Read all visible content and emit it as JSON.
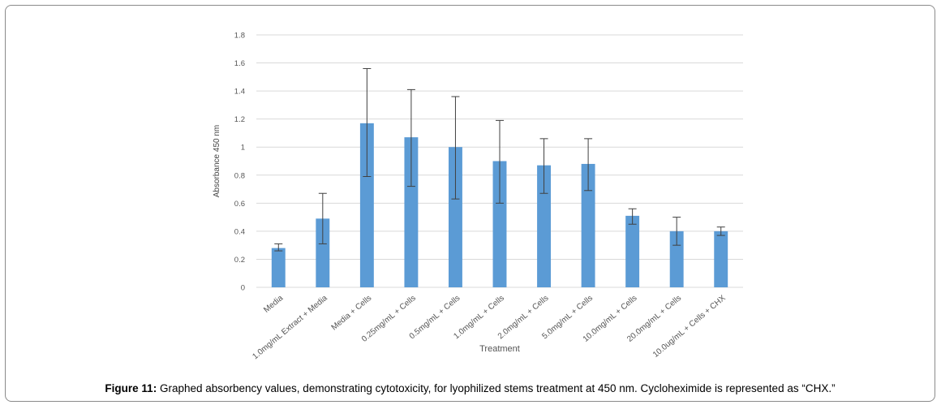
{
  "chart_data": {
    "type": "bar",
    "title": "",
    "xlabel": "Treatment",
    "ylabel": "Absorbance 450 nm",
    "ylim": [
      0,
      1.8
    ],
    "yticks": [
      "0",
      "0.2",
      "0.4",
      "0.6",
      "0.8",
      "1",
      "1.2",
      "1.4",
      "1.6",
      "1.8"
    ],
    "grid": true,
    "legend": "none",
    "bar_color": "#5B9BD5",
    "error_bar_color": "#404040",
    "categories": [
      "Media",
      "1.0mg/mL Extract + Media",
      "Media + Cells",
      "0.25mg/mL + Cells",
      "0.5mg/mL + Cells",
      "1.0mg/mL + Cells",
      "2.0mg/mL + Cells",
      "5.0mg/mL + Cells",
      "10.0mg/mL + Cells",
      "20.0mg/mL + Cells",
      "10.0ug/mL + Cells + CHX"
    ],
    "values": [
      0.28,
      0.49,
      1.17,
      1.07,
      1.0,
      0.9,
      0.87,
      0.88,
      0.51,
      0.4,
      0.4
    ],
    "error_low": [
      0.26,
      0.31,
      0.79,
      0.72,
      0.63,
      0.6,
      0.67,
      0.69,
      0.45,
      0.3,
      0.37
    ],
    "error_high": [
      0.31,
      0.67,
      1.56,
      1.41,
      1.36,
      1.19,
      1.06,
      1.06,
      0.56,
      0.5,
      0.43
    ]
  },
  "caption": {
    "label": "Figure 11:",
    "text": " Graphed absorbency values, demonstrating cytotoxicity, for lyophilized stems treatment at 450 nm. Cycloheximide is represented as “CHX.”"
  }
}
